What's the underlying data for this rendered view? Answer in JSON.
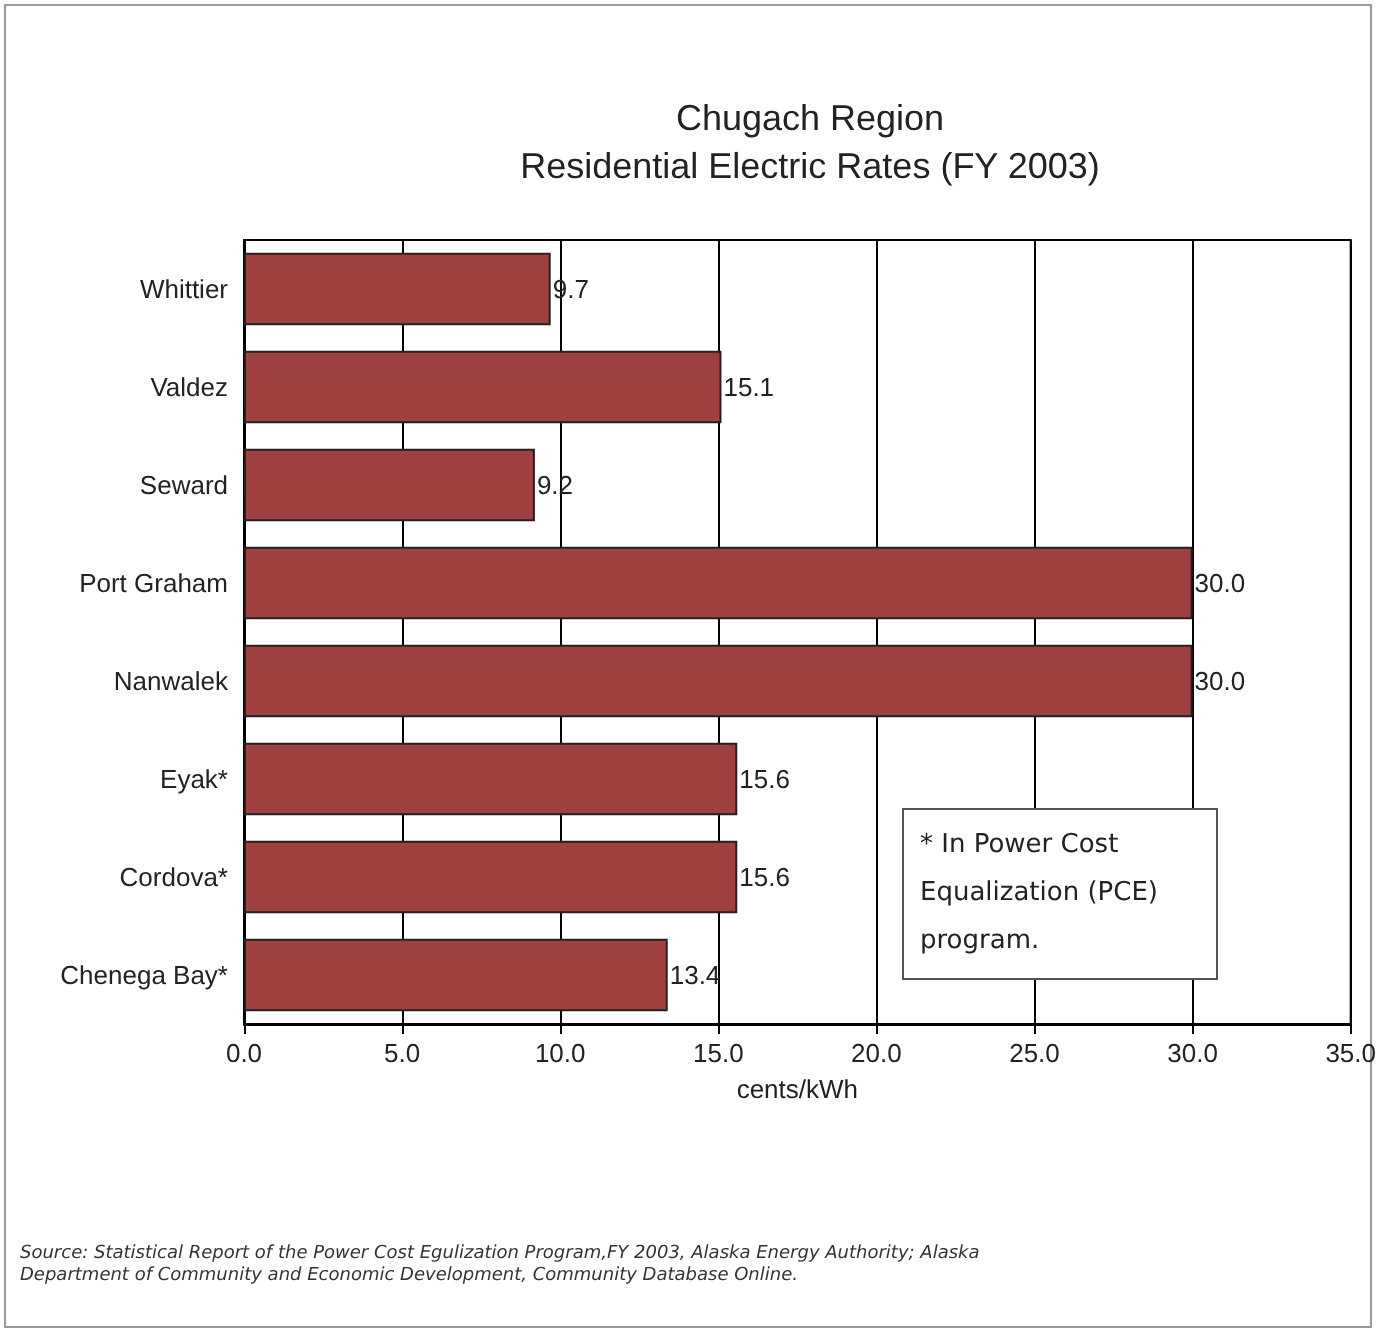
{
  "chart_data": {
    "type": "bar",
    "orientation": "horizontal",
    "title": "Chugach Region",
    "subtitle": "Residential Electric Rates (FY 2003)",
    "xlabel": "cents/kWh",
    "categories": [
      "Whittier",
      "Valdez",
      "Seward",
      "Port Graham",
      "Nanwalek",
      "Eyak*",
      "Cordova*",
      "Chenega Bay*"
    ],
    "values": [
      9.7,
      15.1,
      9.2,
      30.0,
      30.0,
      15.6,
      15.6,
      13.4
    ],
    "value_labels": [
      "9.7",
      "15.1",
      "9.2",
      "30.0",
      "30.0",
      "15.6",
      "15.6",
      "13.4"
    ],
    "color": "#9e4040",
    "xlim": [
      0,
      35
    ],
    "xticks": [
      {
        "value": 0,
        "label": "0.0"
      },
      {
        "value": 5,
        "label": "5.0"
      },
      {
        "value": 10,
        "label": "10.0"
      },
      {
        "value": 15,
        "label": "15.0"
      },
      {
        "value": 20,
        "label": "20.0"
      },
      {
        "value": 25,
        "label": "25.0"
      },
      {
        "value": 30,
        "label": "30.0"
      },
      {
        "value": 35,
        "label": "35.0"
      }
    ],
    "grid": "x",
    "annotations": [
      "* In Power Cost Equalization (PCE) program.",
      "Source: Statistical Report of the Power Cost Egulization Program,FY 2003, Alaska Energy Authority; Alaska Department of Community and Economic Development, Community Database Online."
    ]
  }
}
